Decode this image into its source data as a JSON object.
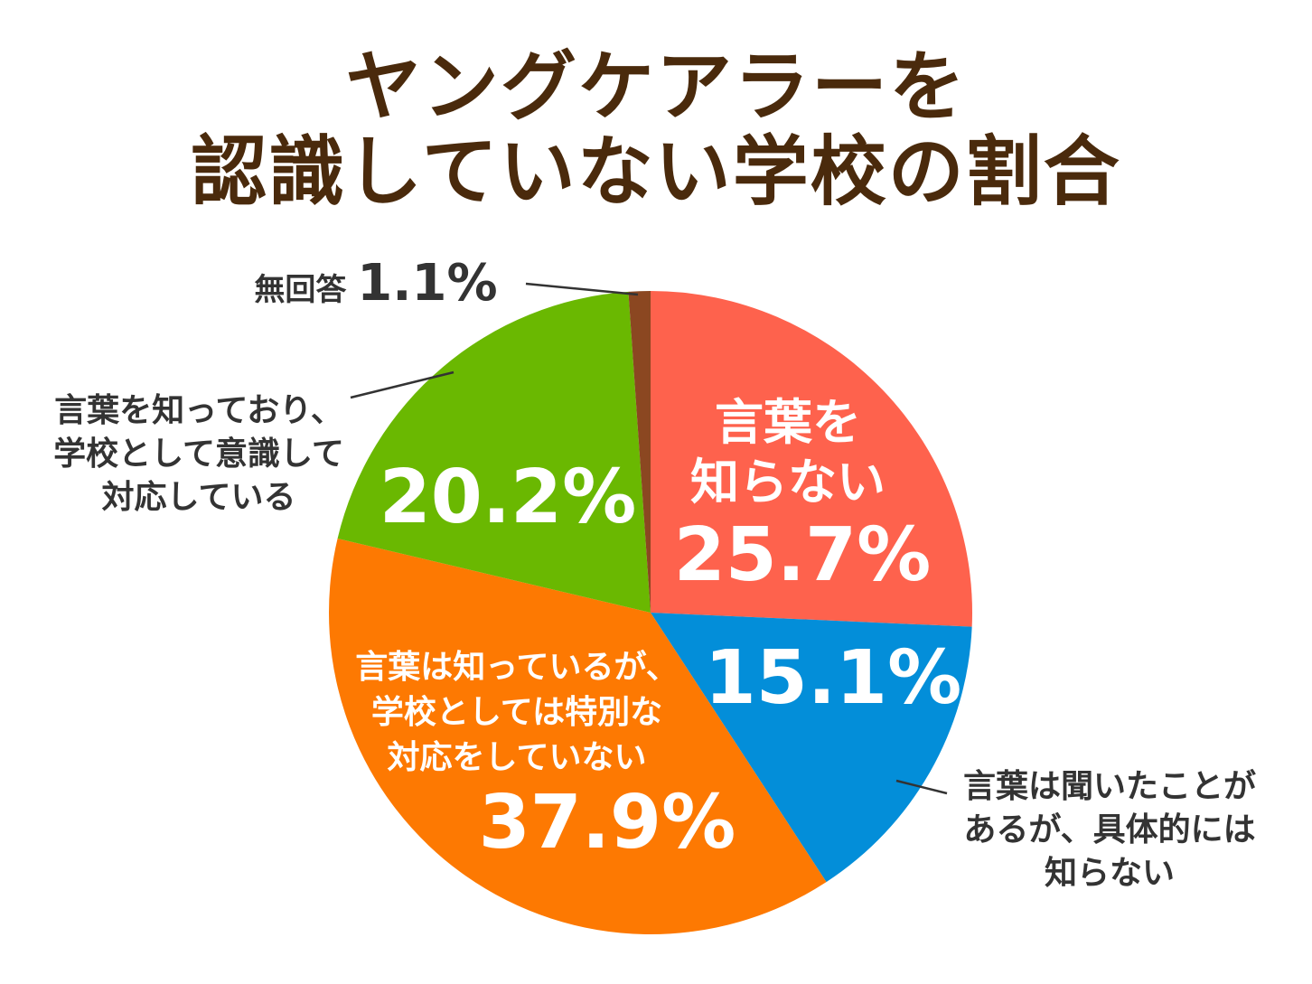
{
  "title": {
    "line1": "ヤングケアラーを",
    "line2": "認識していない学校の割合"
  },
  "chart_data": {
    "type": "pie",
    "title": "ヤングケアラーを認識していない学校の割合",
    "slices": [
      {
        "label": "言葉を知らない",
        "label_lines": [
          "言葉を",
          "知らない"
        ],
        "value": 25.7,
        "display": "25.7%",
        "color": "#fe624d"
      },
      {
        "label": "言葉は聞いたことがあるが、具体的には知らない",
        "label_lines": [
          "言葉は聞いたことが",
          "あるが、具体的には",
          "知らない"
        ],
        "value": 15.1,
        "display": "15.1%",
        "color": "#038ed9"
      },
      {
        "label": "言葉は知っているが、学校としては特別な対応をしていない",
        "label_lines": [
          "言葉は知っているが、",
          "学校としては特別な",
          "対応をしていない"
        ],
        "value": 37.9,
        "display": "37.9%",
        "color": "#fd7902"
      },
      {
        "label": "言葉を知っており、学校として意識して対応している",
        "label_lines": [
          "言葉を知っており、",
          "学校として意識して",
          "対応している"
        ],
        "value": 20.2,
        "display": "20.2%",
        "color": "#6ab801"
      },
      {
        "label": "無回答",
        "label_lines": [
          "無回答"
        ],
        "value": 1.1,
        "display": "1.1%",
        "color": "#8b4721"
      }
    ]
  }
}
